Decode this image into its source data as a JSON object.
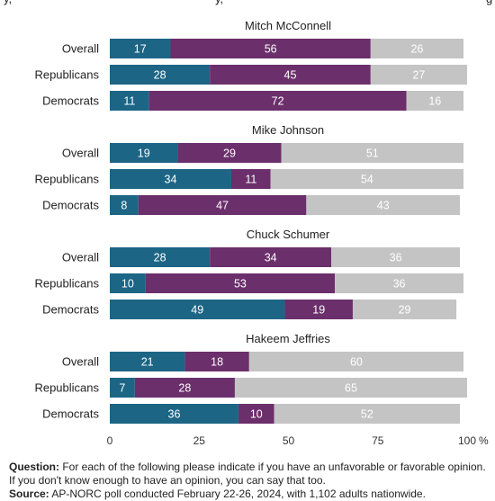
{
  "top_text": {
    "left": "y,",
    "middle": "y,",
    "right": "g"
  },
  "chart_data": {
    "type": "bar",
    "orientation": "horizontal",
    "stacked": true,
    "unit": "%",
    "xlim": [
      0,
      100
    ],
    "x_ticks": [
      "0",
      "25",
      "50",
      "75",
      "100"
    ],
    "tick_suffix": "%",
    "grid": false,
    "colors": [
      "#1c6585",
      "#6b2f6b",
      "#c4c4c4"
    ],
    "value_label_colors": [
      "#ffffff",
      "#ffffff",
      "#ffffff"
    ],
    "groups": [
      {
        "title": "Mitch McConnell",
        "rows": [
          {
            "label": "Overall",
            "values": [
              17,
              56,
              26
            ]
          },
          {
            "label": "Republicans",
            "values": [
              28,
              45,
              27
            ]
          },
          {
            "label": "Democrats",
            "values": [
              11,
              72,
              16
            ]
          }
        ]
      },
      {
        "title": "Mike Johnson",
        "rows": [
          {
            "label": "Overall",
            "values": [
              19,
              29,
              51
            ]
          },
          {
            "label": "Republicans",
            "values": [
              34,
              11,
              54
            ]
          },
          {
            "label": "Democrats",
            "values": [
              8,
              47,
              43
            ]
          }
        ]
      },
      {
        "title": "Chuck Schumer",
        "rows": [
          {
            "label": "Overall",
            "values": [
              28,
              34,
              36
            ]
          },
          {
            "label": "Republicans",
            "values": [
              10,
              53,
              36
            ]
          },
          {
            "label": "Democrats",
            "values": [
              49,
              19,
              29
            ]
          }
        ]
      },
      {
        "title": "Hakeem Jeffries",
        "rows": [
          {
            "label": "Overall",
            "values": [
              21,
              18,
              60
            ]
          },
          {
            "label": "Republicans",
            "values": [
              7,
              28,
              65
            ]
          },
          {
            "label": "Democrats",
            "values": [
              36,
              10,
              52
            ]
          }
        ]
      }
    ]
  },
  "notes": {
    "question_label": "Question:",
    "question_text": "For each of the following please indicate if you have an unfavorable or favorable opinion. If you don't know enough to have an opinion, you can say that too.",
    "source_label": "Source:",
    "source_text": "AP-NORC poll conducted February 22-26, 2024, with 1,102 adults nationwide."
  }
}
